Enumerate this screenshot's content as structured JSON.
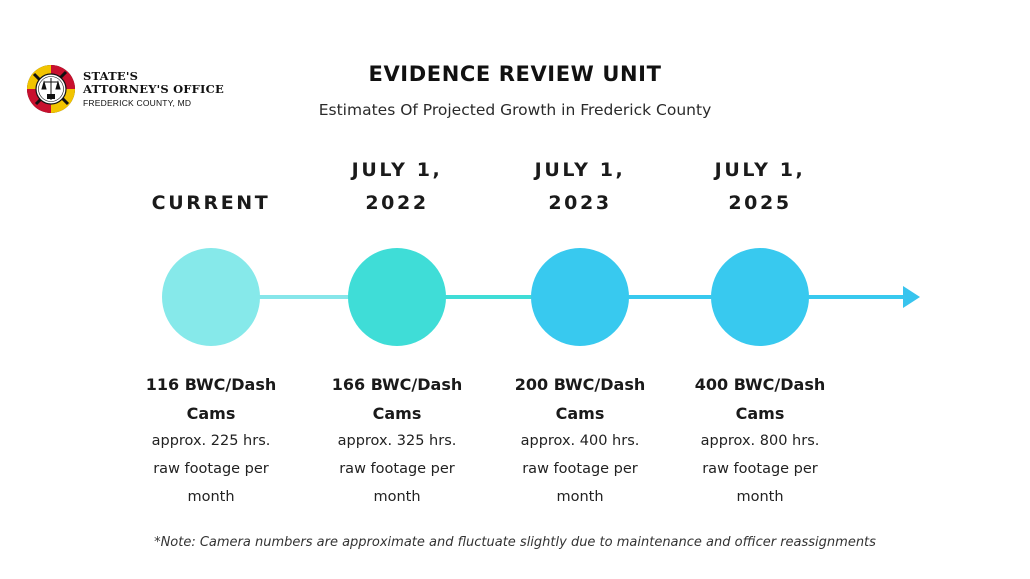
{
  "header": {
    "logo": {
      "org_line1": "STATE'S",
      "org_line2": "ATTORNEY'S OFFICE",
      "org_sub": "FREDERICK COUNTY, MD",
      "seal_colors": [
        "#c8102e",
        "#f2c400",
        "#111111",
        "#ffffff"
      ]
    },
    "title": "EVIDENCE REVIEW UNIT",
    "subtitle": "Estimates Of Projected Growth in Frederick County"
  },
  "timeline": {
    "line_color": "#86e6ea",
    "arrow_color": "#38c4ee",
    "milestones": [
      {
        "date_line1": "",
        "date_line2": "CURRENT",
        "circle_color": "#86e9ea",
        "count": "116 BWC/Dash",
        "count_unit": "Cams",
        "footage_line1": "approx. 225 hrs.",
        "footage_line2": "raw footage per",
        "footage_line3": "month"
      },
      {
        "date_line1": "JULY 1,",
        "date_line2": "2022",
        "circle_color": "#3fddd7",
        "count": "166 BWC/Dash",
        "count_unit": "Cams",
        "footage_line1": "approx. 325 hrs.",
        "footage_line2": "raw footage per",
        "footage_line3": "month"
      },
      {
        "date_line1": "JULY 1,",
        "date_line2": "2023",
        "circle_color": "#38c9ef",
        "count": "200 BWC/Dash",
        "count_unit": "Cams",
        "footage_line1": "approx. 400 hrs.",
        "footage_line2": "raw footage per",
        "footage_line3": "month"
      },
      {
        "date_line1": "JULY 1,",
        "date_line2": "2025",
        "circle_color": "#38c9ef",
        "count": "400 BWC/Dash",
        "count_unit": "Cams",
        "footage_line1": "approx. 800 hrs.",
        "footage_line2": "raw footage per",
        "footage_line3": "month"
      }
    ]
  },
  "footer": {
    "note": "*Note: Camera numbers are approximate and fluctuate slightly due to maintenance and officer reassignments"
  }
}
